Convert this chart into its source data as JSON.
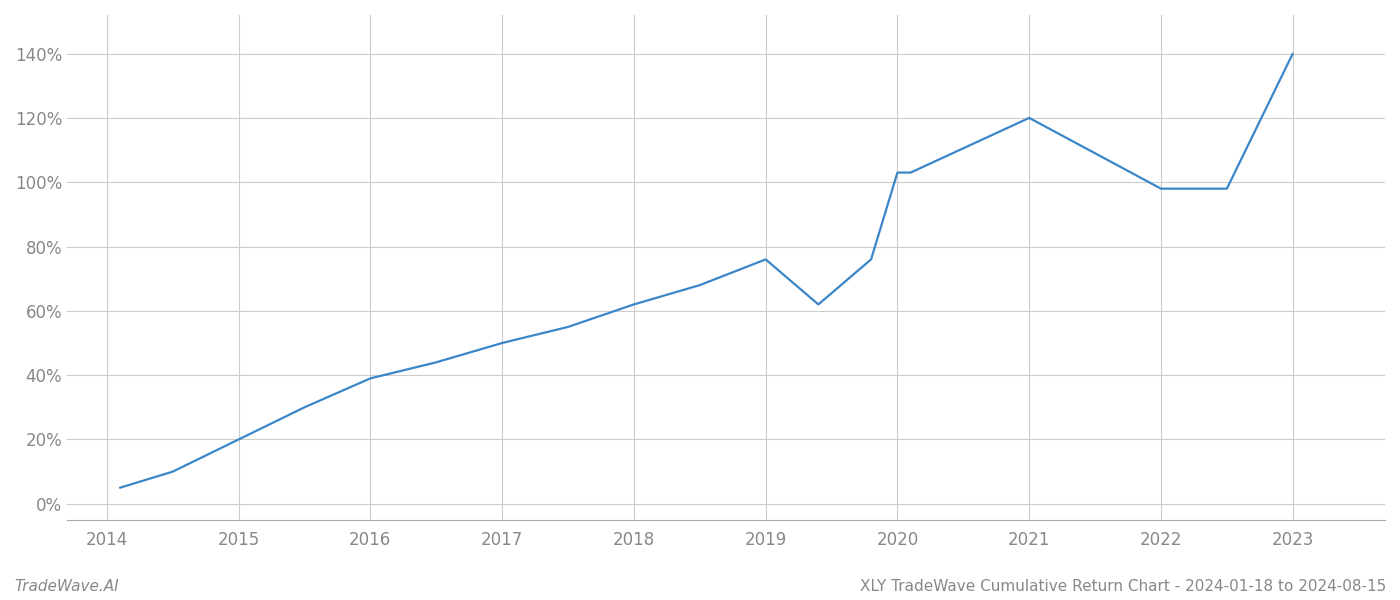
{
  "title": "XLY TradeWave Cumulative Return Chart - 2024-01-18 to 2024-08-15",
  "watermark": "TradeWave.AI",
  "x_values": [
    2014.1,
    2014.5,
    2015.0,
    2015.5,
    2016.0,
    2016.5,
    2017.0,
    2017.5,
    2018.0,
    2018.5,
    2019.0,
    2019.4,
    2019.8,
    2020.0,
    2020.1,
    2021.0,
    2022.0,
    2022.5,
    2023.0
  ],
  "y_values": [
    5,
    10,
    20,
    30,
    39,
    44,
    50,
    55,
    62,
    68,
    76,
    62,
    76,
    103,
    103,
    120,
    98,
    98,
    140
  ],
  "line_color": "#3a86c8",
  "background_color": "#ffffff",
  "grid_color": "#cccccc",
  "tick_color": "#888888",
  "ylim": [
    -5,
    152
  ],
  "yticks": [
    0,
    20,
    40,
    60,
    80,
    100,
    120,
    140
  ],
  "xticks": [
    2014,
    2015,
    2016,
    2017,
    2018,
    2019,
    2020,
    2021,
    2022,
    2023
  ],
  "xlabel_fontsize": 12,
  "ylabel_fontsize": 12,
  "title_fontsize": 11,
  "watermark_fontsize": 11,
  "line_width": 1.6,
  "xlim_left": 2013.7,
  "xlim_right": 2023.7
}
